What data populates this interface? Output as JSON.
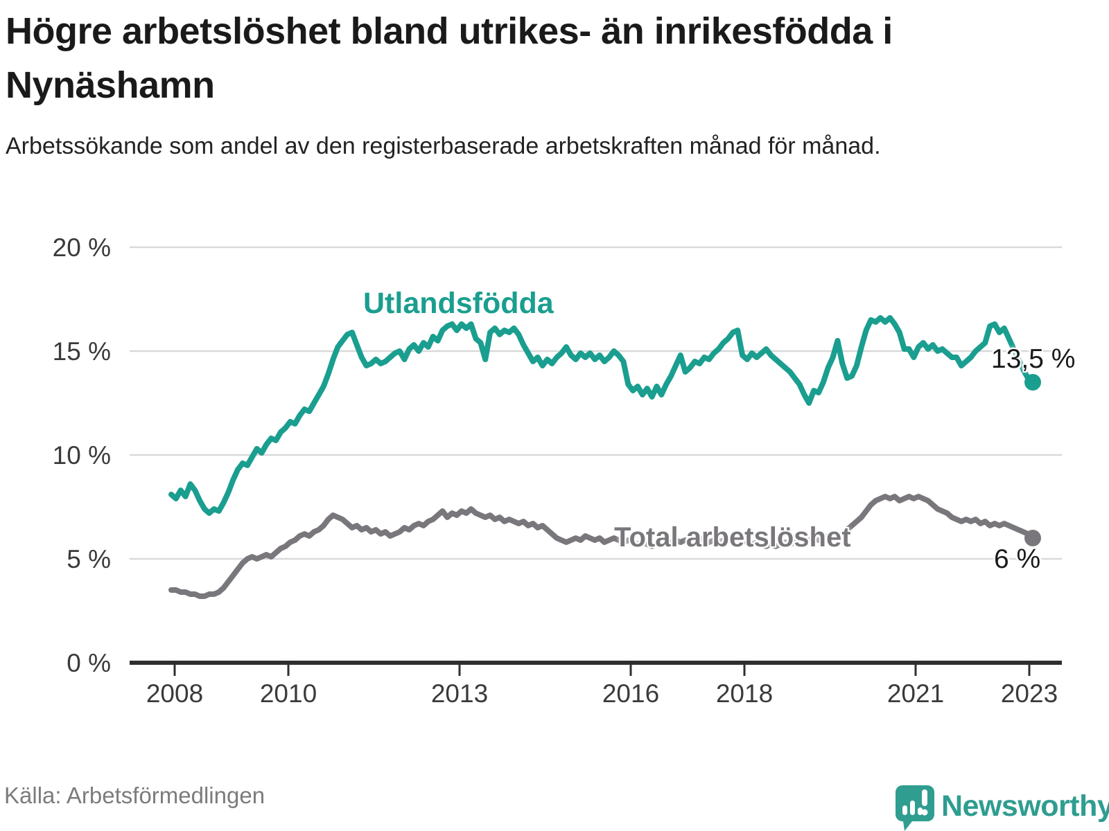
{
  "header": {
    "title": "Högre arbetslöshet bland utrikes- än inrikesfödda i Nynäshamn",
    "subtitle": "Arbetssökande som andel av den registerbaserade arbetskraften månad för månad."
  },
  "footer": {
    "source": "Källa: Arbetsförmedlingen",
    "brand": "Newsworthy"
  },
  "colors": {
    "teal_series": "#1a9e8f",
    "gray_series": "#7a777c",
    "gridline": "#d9d9d9",
    "axis": "#2f2f2f",
    "text_dark": "#1a1a1a",
    "tick_label": "#3a3a3a",
    "brand_teal": "#2f9d90"
  },
  "chart_data": {
    "type": "line",
    "title": "Högre arbetslöshet bland utrikes- än inrikesfödda i Nynäshamn",
    "subtitle": "Arbetssökande som andel av den registerbaserade arbetskraften månad för månad.",
    "x_unit": "month",
    "x_range": [
      "2008-01",
      "2023-02"
    ],
    "x_ticklabels": [
      "2008",
      "2010",
      "2013",
      "2016",
      "2018",
      "2021",
      "2023"
    ],
    "y_ticklabels": [
      "0 %",
      "5 %",
      "10 %",
      "15 %",
      "20 %"
    ],
    "y_ticks": [
      0,
      5,
      10,
      15,
      20
    ],
    "ylim": [
      0,
      21
    ],
    "grid": "horizontal",
    "legend_position": "inline-labels",
    "series": [
      {
        "id": "utlandsfodda",
        "name": "Utlandsfödda",
        "color": "#1a9e8f",
        "end_label": "13,5 %",
        "end_value": 13.5,
        "values": [
          8.1,
          7.9,
          8.3,
          8.0,
          8.6,
          8.3,
          7.8,
          7.4,
          7.2,
          7.4,
          7.3,
          7.7,
          8.2,
          8.8,
          9.3,
          9.6,
          9.5,
          9.9,
          10.3,
          10.1,
          10.5,
          10.8,
          10.7,
          11.1,
          11.3,
          11.6,
          11.5,
          11.9,
          12.2,
          12.1,
          12.5,
          12.9,
          13.3,
          13.9,
          14.6,
          15.2,
          15.5,
          15.8,
          15.9,
          15.3,
          14.7,
          14.3,
          14.4,
          14.6,
          14.4,
          14.5,
          14.7,
          14.9,
          15.0,
          14.6,
          15.1,
          15.3,
          15.0,
          15.4,
          15.2,
          15.7,
          15.5,
          16.0,
          16.2,
          16.3,
          16.0,
          16.3,
          16.1,
          16.3,
          15.6,
          15.4,
          14.6,
          15.9,
          16.1,
          15.8,
          16.0,
          15.9,
          16.1,
          15.8,
          15.3,
          14.9,
          14.5,
          14.7,
          14.3,
          14.6,
          14.4,
          14.7,
          14.9,
          15.2,
          14.8,
          14.6,
          14.9,
          14.7,
          14.9,
          14.6,
          14.8,
          14.5,
          14.7,
          15.0,
          14.8,
          14.5,
          13.4,
          13.1,
          13.3,
          12.9,
          13.2,
          12.8,
          13.3,
          12.9,
          13.4,
          13.8,
          14.3,
          14.8,
          14.0,
          14.2,
          14.5,
          14.4,
          14.7,
          14.6,
          14.9,
          15.1,
          15.4,
          15.6,
          15.9,
          16.0,
          14.8,
          14.6,
          14.9,
          14.7,
          14.9,
          15.1,
          14.8,
          14.6,
          14.4,
          14.2,
          14.0,
          13.7,
          13.4,
          12.9,
          12.5,
          13.1,
          13.0,
          13.5,
          14.2,
          14.7,
          15.5,
          14.4,
          13.7,
          13.8,
          14.3,
          15.2,
          16.0,
          16.5,
          16.4,
          16.6,
          16.4,
          16.6,
          16.3,
          15.9,
          15.1,
          15.1,
          14.7,
          15.2,
          15.4,
          15.1,
          15.3,
          15.0,
          15.1,
          14.9,
          14.7,
          14.7,
          14.3,
          14.5,
          14.7,
          15.0,
          15.2,
          15.4,
          16.2,
          16.3,
          15.9,
          16.1,
          15.6,
          15.1,
          14.6,
          14.1,
          13.7,
          13.5
        ]
      },
      {
        "id": "total",
        "name": "Total arbetslöshet",
        "color": "#7a777c",
        "end_label": "6 %",
        "end_value": 6.0,
        "values": [
          3.5,
          3.5,
          3.4,
          3.4,
          3.3,
          3.3,
          3.2,
          3.2,
          3.3,
          3.3,
          3.4,
          3.6,
          3.9,
          4.2,
          4.5,
          4.8,
          5.0,
          5.1,
          5.0,
          5.1,
          5.2,
          5.1,
          5.3,
          5.5,
          5.6,
          5.8,
          5.9,
          6.1,
          6.2,
          6.1,
          6.3,
          6.4,
          6.6,
          6.9,
          7.1,
          7.0,
          6.9,
          6.7,
          6.5,
          6.6,
          6.4,
          6.5,
          6.3,
          6.4,
          6.2,
          6.3,
          6.1,
          6.2,
          6.3,
          6.5,
          6.4,
          6.6,
          6.7,
          6.6,
          6.8,
          6.9,
          7.1,
          7.3,
          7.0,
          7.2,
          7.1,
          7.3,
          7.2,
          7.4,
          7.2,
          7.1,
          7.0,
          7.1,
          6.9,
          7.0,
          6.8,
          6.9,
          6.8,
          6.7,
          6.8,
          6.6,
          6.7,
          6.5,
          6.6,
          6.4,
          6.2,
          6.0,
          5.9,
          5.8,
          5.9,
          6.0,
          5.9,
          6.1,
          6.0,
          5.9,
          6.0,
          5.8,
          5.9,
          6.0,
          5.9,
          5.8,
          5.9,
          5.8,
          5.7,
          5.8,
          5.7,
          5.6,
          5.7,
          5.8,
          5.7,
          5.8,
          5.9,
          5.8,
          5.9,
          5.8,
          5.9,
          6.0,
          5.9,
          5.8,
          5.9,
          5.8,
          5.9,
          6.0,
          5.9,
          6.0,
          5.9,
          5.8,
          5.7,
          5.8,
          5.7,
          5.6,
          5.7,
          5.6,
          5.7,
          5.8,
          5.7,
          5.8,
          5.9,
          5.8,
          5.9,
          6.0,
          5.9,
          6.0,
          6.1,
          6.0,
          6.1,
          6.2,
          6.4,
          6.6,
          6.8,
          7.0,
          7.3,
          7.6,
          7.8,
          7.9,
          8.0,
          7.9,
          8.0,
          7.8,
          7.9,
          8.0,
          7.9,
          8.0,
          7.9,
          7.8,
          7.6,
          7.4,
          7.3,
          7.2,
          7.0,
          6.9,
          6.8,
          6.9,
          6.8,
          6.9,
          6.7,
          6.8,
          6.6,
          6.7,
          6.6,
          6.7,
          6.6,
          6.5,
          6.4,
          6.3,
          6.2,
          6.0
        ]
      }
    ]
  }
}
